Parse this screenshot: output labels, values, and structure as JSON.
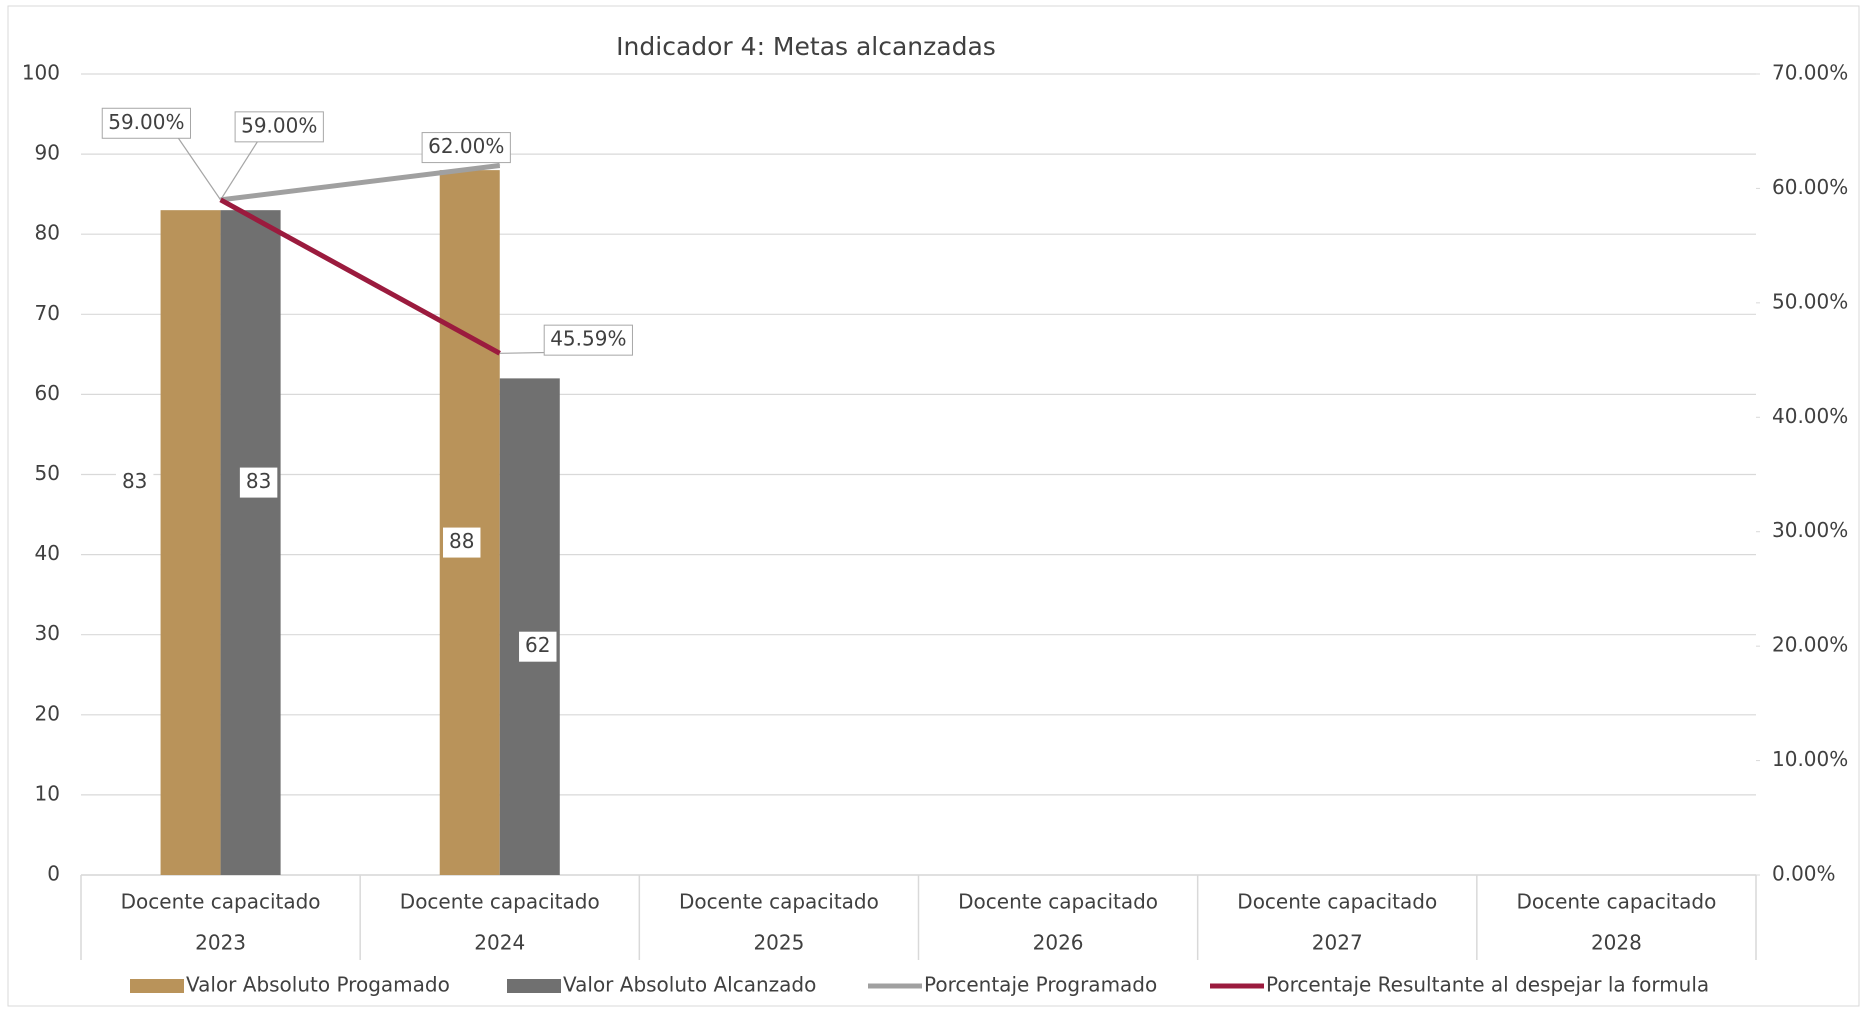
{
  "chart_data": {
    "type": "bar",
    "title": "Indicador 4: Metas alcanzadas",
    "categories": [
      "Docente capacitado",
      "Docente capacitado",
      "Docente capacitado",
      "Docente capacitado",
      "Docente capacitado",
      "Docente capacitado"
    ],
    "years": [
      "2023",
      "2024",
      "2025",
      "2026",
      "2027",
      "2028"
    ],
    "series": [
      {
        "name": "Valor Absoluto Progamado",
        "type": "bar",
        "color": "#b9935a",
        "values": [
          83,
          88,
          null,
          null,
          null,
          null
        ]
      },
      {
        "name": "Valor Absoluto Alcanzado",
        "type": "bar",
        "color": "#707070",
        "values": [
          83,
          62,
          null,
          null,
          null,
          null
        ]
      },
      {
        "name": "Porcentaje Programado",
        "type": "line",
        "axis": "y2",
        "color": "#a0a0a0",
        "values": [
          59,
          62,
          null,
          null,
          null,
          null
        ],
        "value_labels": [
          "59.00%",
          "62.00%",
          null,
          null,
          null,
          null
        ]
      },
      {
        "name": "Porcentaje Resultante al despejar la formula",
        "type": "line",
        "axis": "y2",
        "color": "#9b1b3e",
        "values": [
          59,
          45.59,
          null,
          null,
          null,
          null
        ],
        "value_labels": [
          "59.00%",
          "45.59%",
          null,
          null,
          null,
          null
        ]
      }
    ],
    "ylim": [
      0,
      100
    ],
    "yticks": [
      0,
      10,
      20,
      30,
      40,
      50,
      60,
      70,
      80,
      90,
      100
    ],
    "y2lim": [
      0,
      70
    ],
    "y2ticks": [
      {
        "value": 0,
        "label": "0.00%"
      },
      {
        "value": 10,
        "label": "10.00%"
      },
      {
        "value": 20,
        "label": "20.00%"
      },
      {
        "value": 30,
        "label": "30.00%"
      },
      {
        "value": 40,
        "label": "40.00%"
      },
      {
        "value": 50,
        "label": "50.00%"
      },
      {
        "value": 60,
        "label": "60.00%"
      },
      {
        "value": 70,
        "label": "70.00%"
      }
    ],
    "grid": true,
    "legend": "bottom"
  }
}
